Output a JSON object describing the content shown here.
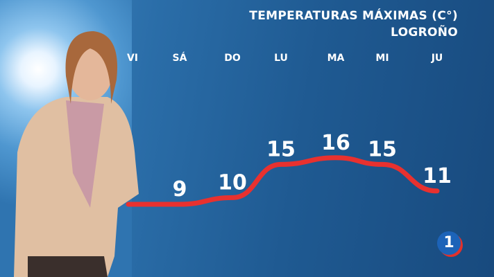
{
  "chart_data": {
    "type": "line",
    "title": "TEMPERATURAS MÁXIMAS (C°)",
    "subtitle": "LOGROÑO",
    "categories": [
      "VI",
      "SÁ",
      "DO",
      "LU",
      "MA",
      "MI",
      "JU"
    ],
    "values": [
      null,
      9,
      10,
      15,
      16,
      15,
      11
    ],
    "line_color": "#e8312f",
    "grid": false
  },
  "logo": {
    "text": "1",
    "colors": [
      "#1c63b8",
      "#e2312b"
    ]
  }
}
